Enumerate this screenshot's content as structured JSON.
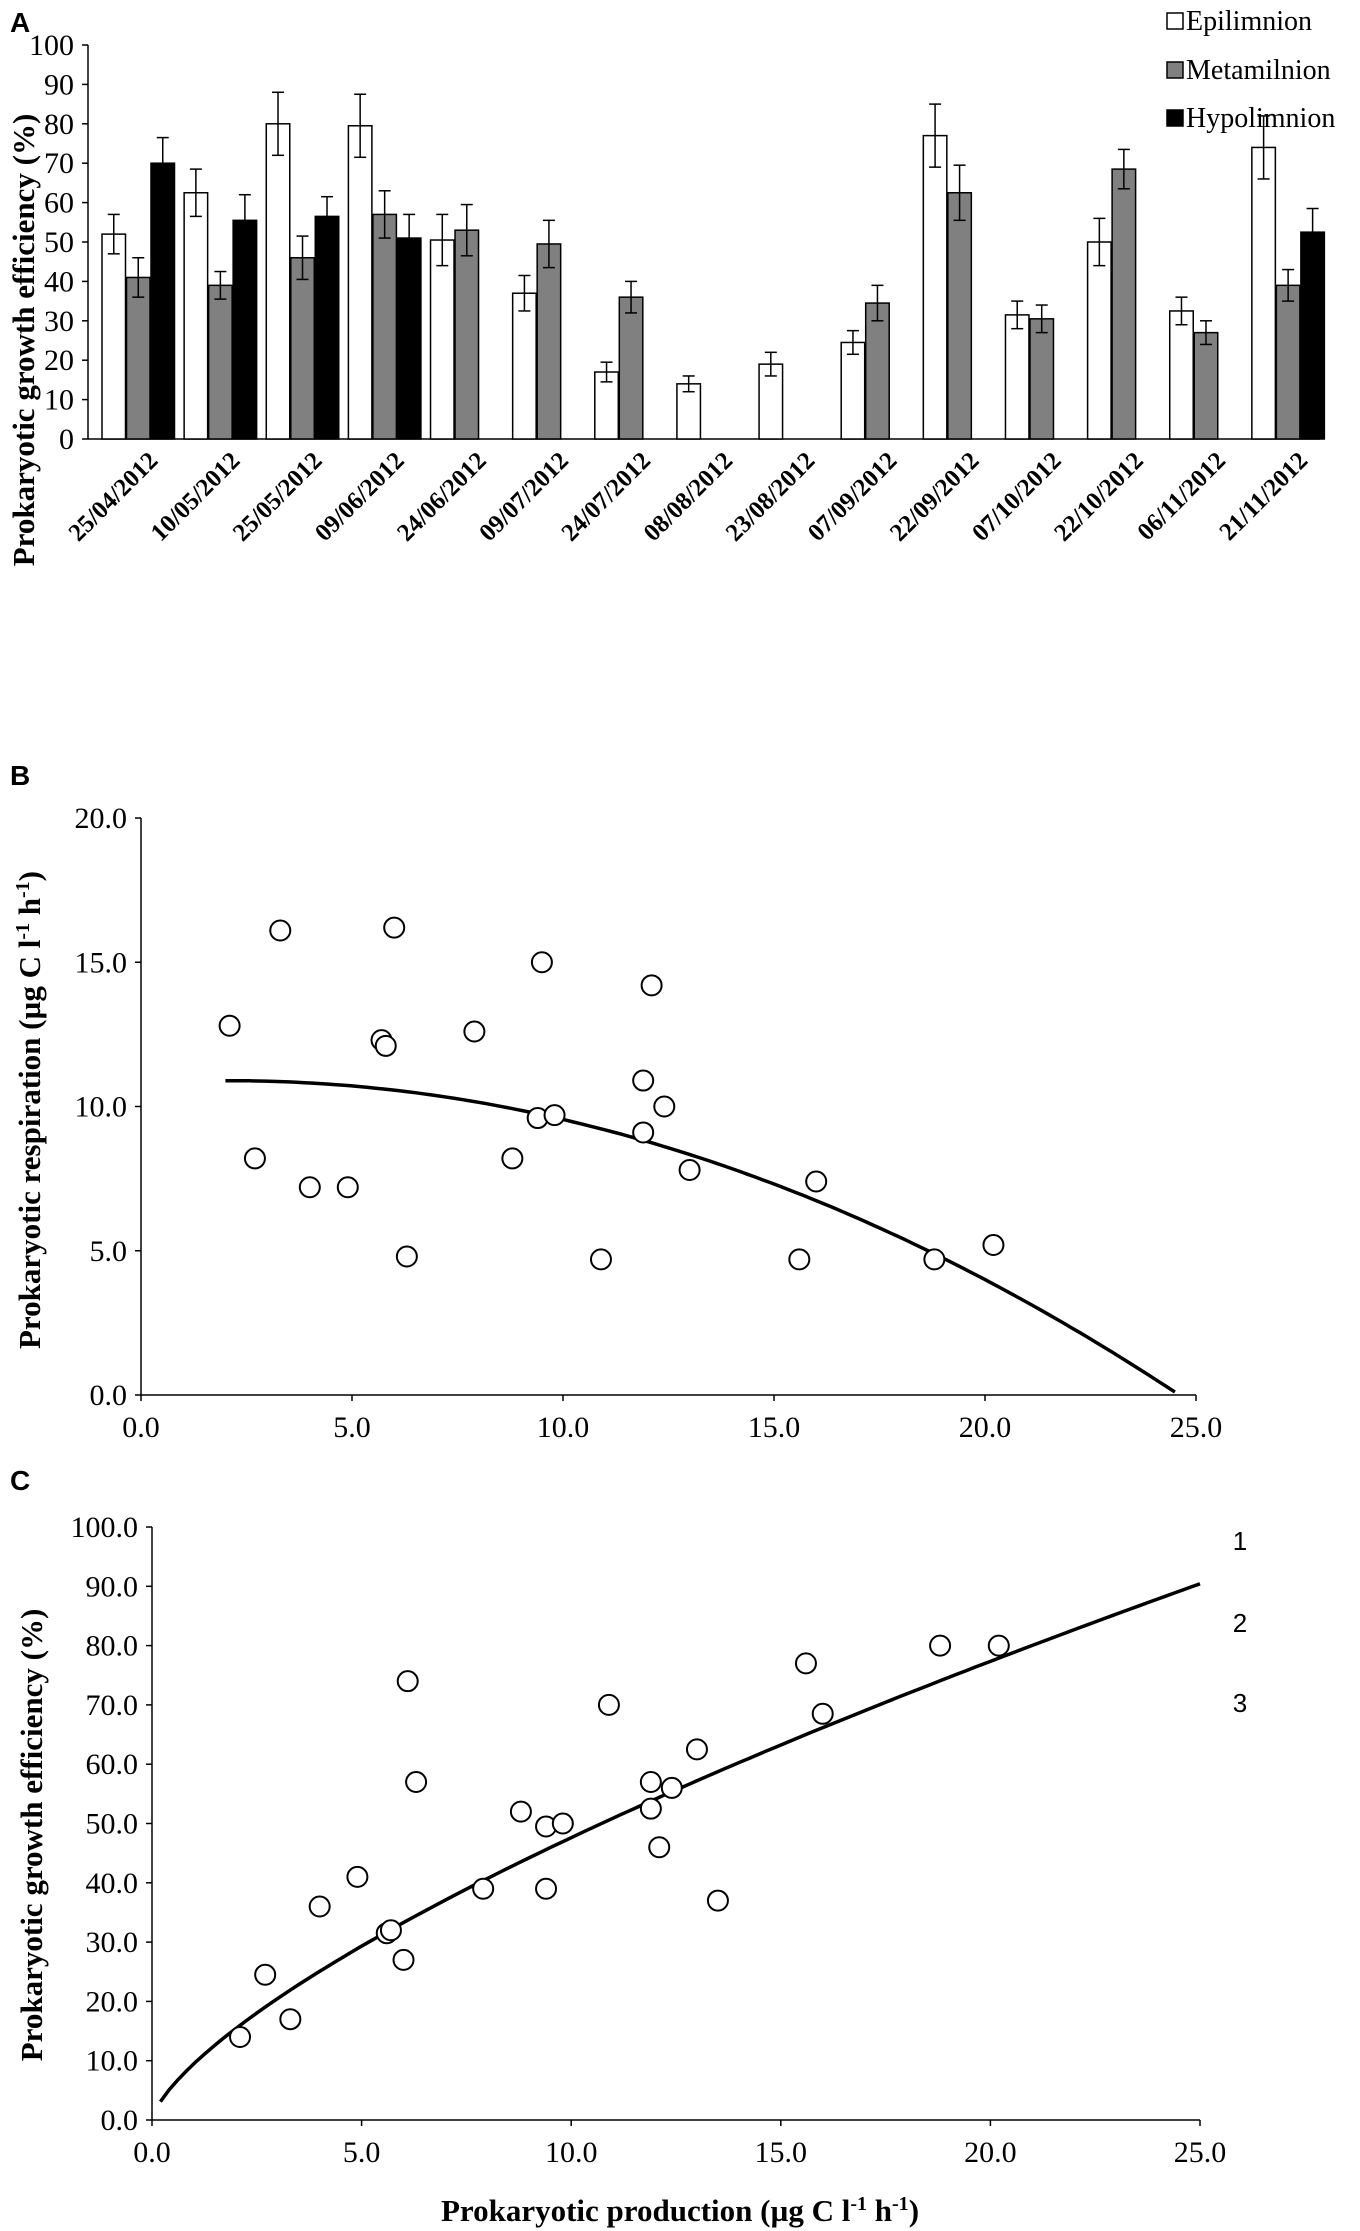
{
  "colors": {
    "epilimnion": "#ffffff",
    "metamilnion": "#808080",
    "hypolimnion": "#000000",
    "axis": "#000000"
  },
  "chart_data": [
    {
      "panel": "A",
      "type": "bar",
      "ylabel": "Prokaryotic growth efficiency (%)",
      "xlabel": "",
      "ylim": [
        0,
        100
      ],
      "yticks": [
        0,
        10,
        20,
        30,
        40,
        50,
        60,
        70,
        80,
        90,
        100
      ],
      "legend_position": "top-right",
      "categories": [
        "25/04/2012",
        "10/05/2012",
        "25/05/2012",
        "09/06/2012",
        "24/06/2012",
        "09/07/2012",
        "24/07/2012",
        "08/08/2012",
        "23/08/2012",
        "07/09/2012",
        "22/09/2012",
        "07/10/2012",
        "22/10/2012",
        "06/11/2012",
        "21/11/2012"
      ],
      "series": [
        {
          "name": "Epilimnion",
          "values": [
            52,
            62.5,
            80,
            79.5,
            50.5,
            37,
            17,
            14,
            19,
            24.5,
            77,
            31.5,
            50,
            32.5,
            74
          ],
          "errors": [
            5,
            6,
            8,
            8,
            6.5,
            4.5,
            2.5,
            2,
            3,
            3,
            8,
            3.5,
            6,
            3.5,
            8
          ]
        },
        {
          "name": "Metamilnion",
          "values": [
            41,
            39,
            46,
            57,
            53,
            49.5,
            36,
            null,
            null,
            34.5,
            62.5,
            30.5,
            68.5,
            27,
            39
          ],
          "errors": [
            5,
            3.5,
            5.5,
            6,
            6.5,
            6,
            4,
            null,
            null,
            4.5,
            7,
            3.5,
            5,
            3,
            4
          ]
        },
        {
          "name": "Hypolimnion",
          "values": [
            70,
            55.5,
            56.5,
            51,
            null,
            null,
            null,
            null,
            null,
            null,
            null,
            null,
            null,
            null,
            52.5
          ],
          "errors": [
            6.5,
            6.5,
            5,
            6,
            null,
            null,
            null,
            null,
            null,
            null,
            null,
            null,
            null,
            null,
            6
          ]
        }
      ]
    },
    {
      "panel": "B",
      "type": "scatter",
      "ylabel": "Prokaryotic respiration (µg C l-1 h-1)",
      "xlabel": "",
      "xlim": [
        0,
        25
      ],
      "ylim": [
        0,
        20
      ],
      "xticks": [
        "0.0",
        "5.0",
        "10.0",
        "15.0",
        "20.0",
        "25.0"
      ],
      "yticks": [
        "0.0",
        "5.0",
        "10.0",
        "15.0",
        "20.0"
      ],
      "points": [
        [
          2.1,
          12.8
        ],
        [
          2.7,
          8.2
        ],
        [
          3.3,
          16.1
        ],
        [
          4.0,
          7.2
        ],
        [
          4.9,
          7.2
        ],
        [
          5.7,
          12.3
        ],
        [
          5.8,
          12.1
        ],
        [
          6.0,
          16.2
        ],
        [
          6.3,
          4.8
        ],
        [
          7.9,
          12.6
        ],
        [
          8.8,
          8.2
        ],
        [
          9.4,
          9.6
        ],
        [
          9.5,
          15.0
        ],
        [
          9.8,
          9.7
        ],
        [
          10.9,
          4.7
        ],
        [
          11.9,
          10.9
        ],
        [
          11.9,
          9.1
        ],
        [
          12.1,
          14.2
        ],
        [
          12.4,
          10.0
        ],
        [
          13.0,
          7.8
        ],
        [
          15.6,
          4.7
        ],
        [
          16.0,
          7.4
        ],
        [
          18.8,
          4.7
        ],
        [
          20.2,
          5.2
        ]
      ],
      "fit": {
        "type": "quadratic",
        "coefficients": [
          10.8,
          0.09,
          -0.0215
        ],
        "x_range": [
          2.0,
          24.5
        ]
      }
    },
    {
      "panel": "C",
      "type": "scatter",
      "ylabel": "Prokaryotic growth efficiency (%)",
      "xlabel": "Prokaryotic production (µg C l-1 h-1)",
      "xlim": [
        0,
        25
      ],
      "ylim": [
        0,
        100
      ],
      "xticks": [
        "0.0",
        "5.0",
        "10.0",
        "15.0",
        "20.0",
        "25.0"
      ],
      "yticks": [
        "0.0",
        "10.0",
        "20.0",
        "30.0",
        "40.0",
        "50.0",
        "60.0",
        "70.0",
        "80.0",
        "90.0",
        "100.0"
      ],
      "points": [
        [
          2.1,
          14
        ],
        [
          2.7,
          24.5
        ],
        [
          3.3,
          17
        ],
        [
          4.0,
          36
        ],
        [
          4.9,
          41
        ],
        [
          5.6,
          31.5
        ],
        [
          5.7,
          32
        ],
        [
          6.0,
          27
        ],
        [
          6.1,
          74
        ],
        [
          6.3,
          57
        ],
        [
          7.9,
          39
        ],
        [
          8.8,
          52
        ],
        [
          9.4,
          49.5
        ],
        [
          9.4,
          39
        ],
        [
          9.8,
          50
        ],
        [
          10.9,
          70
        ],
        [
          11.9,
          52.5
        ],
        [
          11.9,
          57
        ],
        [
          12.1,
          46
        ],
        [
          12.4,
          56
        ],
        [
          13.0,
          62.5
        ],
        [
          13.5,
          37
        ],
        [
          15.6,
          77
        ],
        [
          16.0,
          68.5
        ],
        [
          18.8,
          80
        ],
        [
          20.2,
          80
        ]
      ],
      "fit": {
        "type": "power",
        "a": 9.5,
        "b": 0.7,
        "x_range": [
          0.2,
          25
        ]
      },
      "side_labels": [
        "1",
        "2",
        "3"
      ]
    }
  ]
}
